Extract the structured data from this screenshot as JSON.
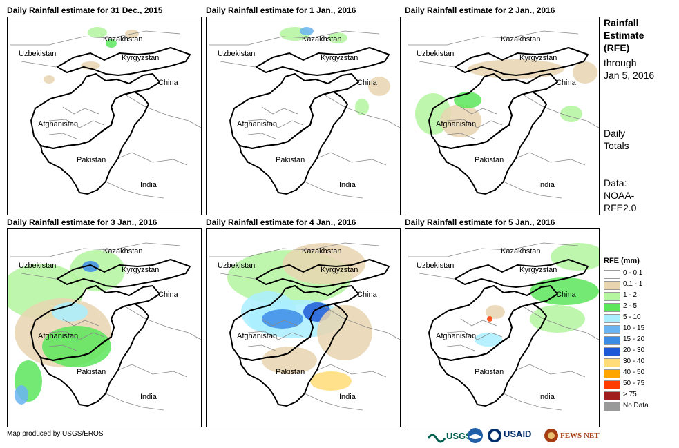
{
  "panels": [
    {
      "title": "Daily Rainfall estimate for 31 Dec., 2015"
    },
    {
      "title": "Daily Rainfall estimate for 1 Jan., 2016"
    },
    {
      "title": "Daily Rainfall estimate for 2 Jan., 2016"
    },
    {
      "title": "Daily Rainfall estimate for 3 Jan., 2016"
    },
    {
      "title": "Daily Rainfall estimate for 4 Jan., 2016"
    },
    {
      "title": "Daily Rainfall estimate for 5 Jan., 2016"
    }
  ],
  "map_labels": {
    "kazakhstan": "Kazakhstan",
    "uzbekistan": "Uzbekistan",
    "kyrgyzstan": "Kyrgyzstan",
    "china": "China",
    "afghanistan": "Afghanistan",
    "pakistan": "Pakistan",
    "india": "India"
  },
  "sidebar": {
    "title_lines": [
      "Rainfall",
      "Estimate",
      "(RFE)"
    ],
    "through": "through",
    "date": "Jan 5, 2016",
    "daily": "Daily",
    "totals": "Totals",
    "data_label": "Data:",
    "source_1": "NOAA-",
    "source_2": "RFE2.0"
  },
  "legend": {
    "title": "RFE (mm)",
    "items": [
      {
        "label": "0 - 0.1",
        "color": "#ffffff"
      },
      {
        "label": "0.1 - 1",
        "color": "#e8d5b0"
      },
      {
        "label": "1 - 2",
        "color": "#b4f5a0"
      },
      {
        "label": "2 - 5",
        "color": "#5ce65c"
      },
      {
        "label": "5 - 10",
        "color": "#aaeeff"
      },
      {
        "label": "10 - 15",
        "color": "#6ab4f2"
      },
      {
        "label": "15 - 20",
        "color": "#3c8ce6"
      },
      {
        "label": "20 - 30",
        "color": "#1e5ad7"
      },
      {
        "label": "30 - 40",
        "color": "#ffdc78"
      },
      {
        "label": "40 - 50",
        "color": "#ffa500"
      },
      {
        "label": "50 - 75",
        "color": "#ff3c00"
      },
      {
        "label": "> 75",
        "color": "#a01e1e"
      },
      {
        "label": "No Data",
        "color": "#999999"
      }
    ]
  },
  "footer": {
    "credit": "Map produced by USGS/EROS",
    "logo_usgs": "USGS",
    "logo_usaid": "USAID",
    "logo_fews": "FEWS NET"
  }
}
